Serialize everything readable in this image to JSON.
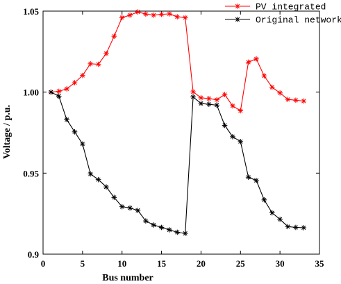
{
  "chart_data": {
    "type": "line",
    "title": "",
    "xlabel": "Bus number",
    "ylabel": "Voltage / p.u.",
    "xlim": [
      0,
      35
    ],
    "ylim": [
      0.9,
      1.05
    ],
    "xticks": [
      0,
      5,
      10,
      15,
      20,
      25,
      30,
      35
    ],
    "xtick_labels": [
      "0",
      "5",
      "10",
      "15",
      "20",
      "25",
      "30",
      "35"
    ],
    "yticks": [
      0.9,
      0.95,
      1.0,
      1.05
    ],
    "ytick_labels": [
      "0.9",
      "0.95",
      "1.00",
      "1.05"
    ],
    "grid": false,
    "legend_position": "top-right",
    "series": [
      {
        "name": "PV integrated",
        "color": "#ff0000",
        "marker": "asterisk",
        "x": [
          1,
          2,
          3,
          4,
          5,
          6,
          7,
          8,
          9,
          10,
          11,
          12,
          13,
          14,
          15,
          16,
          17,
          18,
          19,
          20,
          21,
          22,
          23,
          24,
          25,
          26,
          27,
          28,
          29,
          30,
          31,
          32,
          33
        ],
        "values": [
          1.0,
          1.0005,
          1.002,
          1.0058,
          1.0103,
          1.0175,
          1.0172,
          1.0238,
          1.0345,
          1.046,
          1.0475,
          1.0495,
          1.0482,
          1.0475,
          1.048,
          1.0483,
          1.0465,
          1.046,
          1.0002,
          0.9965,
          0.996,
          0.9953,
          0.9985,
          0.9915,
          0.9885,
          1.0185,
          1.0205,
          1.01,
          1.003,
          0.9995,
          0.9955,
          0.995,
          0.9945
        ]
      },
      {
        "name": "Original network",
        "color": "#000000",
        "marker": "asterisk",
        "x": [
          1,
          2,
          3,
          4,
          5,
          6,
          7,
          8,
          9,
          10,
          11,
          12,
          13,
          14,
          15,
          16,
          17,
          18,
          19,
          20,
          21,
          22,
          23,
          24,
          25,
          26,
          27,
          28,
          29,
          30,
          31,
          32,
          33
        ],
        "values": [
          1.0,
          0.9975,
          0.983,
          0.9755,
          0.968,
          0.9495,
          0.946,
          0.9415,
          0.935,
          0.9293,
          0.9285,
          0.927,
          0.9205,
          0.918,
          0.9165,
          0.915,
          0.9135,
          0.9128,
          0.997,
          0.993,
          0.9925,
          0.992,
          0.9795,
          0.9725,
          0.9695,
          0.9475,
          0.9455,
          0.9335,
          0.9255,
          0.9215,
          0.917,
          0.9165,
          0.9163
        ]
      }
    ]
  }
}
